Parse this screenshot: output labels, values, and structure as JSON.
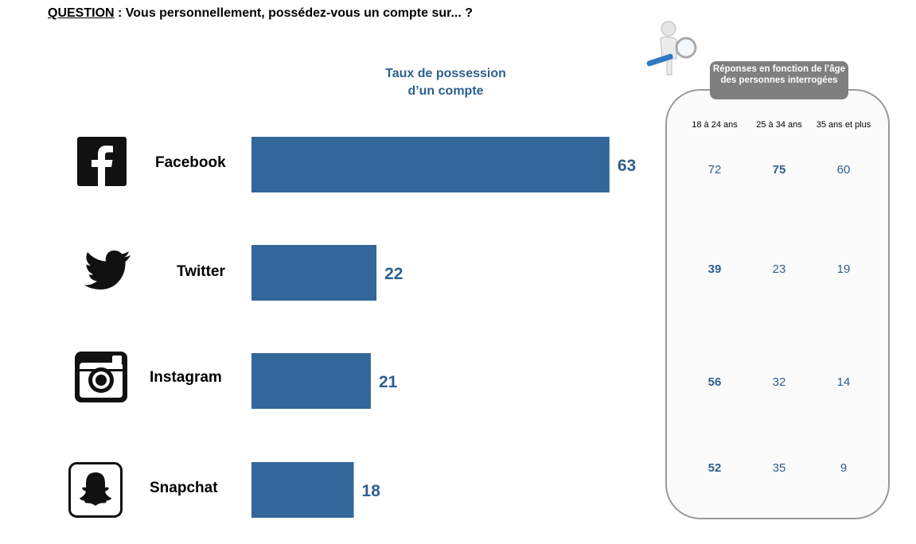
{
  "question": {
    "label": "QUESTION",
    "text": " :  Vous personnellement, possédez-vous un compte sur... ?"
  },
  "chart_data": {
    "type": "bar",
    "orientation": "horizontal",
    "title": "Taux de possession d’un compte",
    "categories": [
      "Facebook",
      "Twitter",
      "Instagram",
      "Snapchat"
    ],
    "values": [
      63,
      22,
      21,
      18
    ],
    "xlim": [
      0,
      100
    ],
    "bar_color": "#336699",
    "label_color": "#2f5f8f"
  },
  "title_lines": [
    "Taux de possession",
    "d’un compte"
  ],
  "networks": [
    {
      "name": "Facebook",
      "icon": "facebook-icon",
      "value": 63
    },
    {
      "name": "Twitter",
      "icon": "twitter-icon",
      "value": 22
    },
    {
      "name": "Instagram",
      "icon": "instagram-icon",
      "value": 21
    },
    {
      "name": "Snapchat",
      "icon": "snapchat-icon",
      "value": 18
    }
  ],
  "age_panel": {
    "header": "Réponses en fonction de l’âge des personnes interrogées",
    "columns": [
      "18 à 24 ans",
      "25 à 34 ans",
      "35 ans et plus"
    ],
    "rows": [
      {
        "network": "Facebook",
        "values": [
          72,
          75,
          60
        ],
        "bold": [
          false,
          true,
          false
        ]
      },
      {
        "network": "Twitter",
        "values": [
          39,
          23,
          19
        ],
        "bold": [
          true,
          false,
          false
        ]
      },
      {
        "network": "Instagram",
        "values": [
          56,
          32,
          14
        ],
        "bold": [
          true,
          false,
          false
        ]
      },
      {
        "network": "Snapchat",
        "values": [
          52,
          35,
          9
        ],
        "bold": [
          true,
          false,
          false
        ]
      }
    ]
  },
  "colors": {
    "accent": "#336699",
    "panel_header": "#7f7f7f",
    "panel_border": "#9a9a9a"
  }
}
